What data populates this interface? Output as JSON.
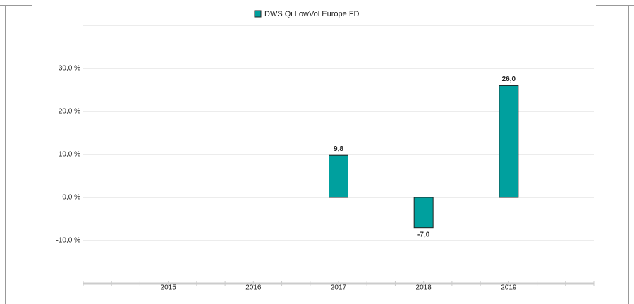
{
  "chart_data": {
    "type": "bar",
    "categories": [
      "2015",
      "2016",
      "2017",
      "2018",
      "2019"
    ],
    "series": [
      {
        "name": "DWS Qi LowVol Europe  FD",
        "color": "#00a09e",
        "values": [
          null,
          null,
          9.8,
          -7.0,
          26.0
        ],
        "value_labels": [
          null,
          null,
          "9,8",
          "-7,0",
          "26,0"
        ]
      }
    ],
    "ylim": [
      -20,
      40
    ],
    "yticks": [
      {
        "value": -10,
        "label": "-10,0 %"
      },
      {
        "value": 0,
        "label": "0,0 %"
      },
      {
        "value": 10,
        "label": "10,0 %"
      },
      {
        "value": 20,
        "label": "20,0 %"
      },
      {
        "value": 30,
        "label": "30,0 %"
      }
    ],
    "grid": true,
    "legend": "top"
  }
}
